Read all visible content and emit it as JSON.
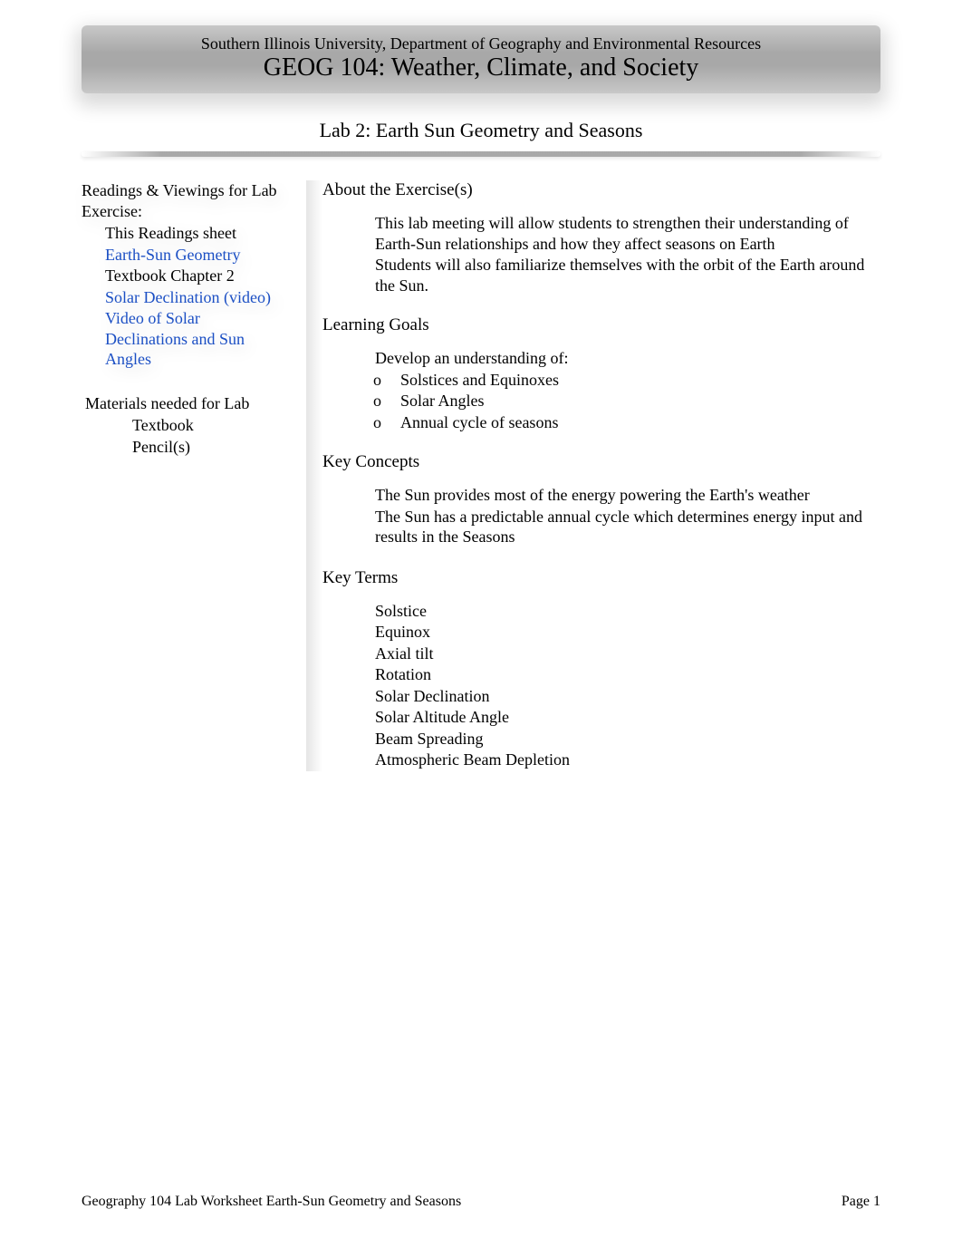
{
  "header": {
    "subtitle": "Southern Illinois University, Department of Geography and Environmental Resources",
    "title": "GEOG 104: Weather, Climate, and Society"
  },
  "lab_title": "Lab 2: Earth Sun Geometry and Seasons",
  "sidebar": {
    "readings_heading": "Readings & Viewings for Lab Exercise:",
    "readings": [
      {
        "text": "This Readings sheet",
        "link": false
      },
      {
        "text": "Earth-Sun Geometry",
        "link": true
      },
      {
        "text": "Textbook Chapter 2",
        "link": false
      },
      {
        "text": "Solar Declination (video)",
        "link": true
      },
      {
        "text": "Video of Solar Declinations and Sun Angles",
        "link": true
      }
    ],
    "materials_heading": "Materials needed for Lab",
    "materials": [
      "Textbook",
      "Pencil(s)"
    ]
  },
  "main": {
    "about_heading": "About the Exercise(s)",
    "about": [
      "This lab meeting will allow students to strengthen their understanding of Earth-Sun relationships and how they affect seasons on Earth",
      "Students will also familiarize themselves with the orbit of the Earth around the Sun."
    ],
    "goals_heading": "Learning Goals",
    "goals_intro": "Develop an understanding of:",
    "goals_sub": [
      "Solstices and Equinoxes",
      "Solar Angles",
      "Annual cycle of seasons"
    ],
    "concepts_heading": "Key Concepts",
    "concepts": [
      "The Sun provides most of the energy powering the Earth's weather",
      "The Sun has a predictable annual cycle which determines energy input and results in the Seasons",
      ""
    ],
    "terms_heading": "Key Terms",
    "terms": [
      "Solstice",
      "Equinox",
      "Axial tilt",
      "Rotation",
      "Solar Declination",
      "Solar Altitude Angle",
      "Beam Spreading",
      "Atmospheric Beam Depletion"
    ]
  },
  "footer": {
    "left": "Geography 104 Lab Worksheet Earth-Sun Geometry and Seasons",
    "right": "Page 1"
  },
  "glyphs": {
    "square": "",
    "circle": "o"
  },
  "colors": {
    "link": "#1b4fc4",
    "text": "#000000",
    "banner_mid": "#a8a8a8",
    "banner_edge": "#c8c8c8"
  }
}
